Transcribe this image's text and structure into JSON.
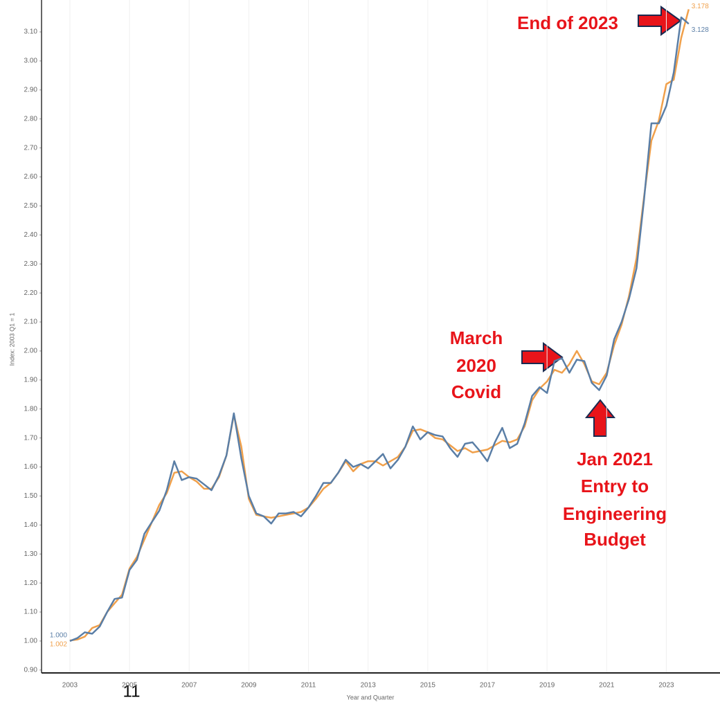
{
  "chart_data": {
    "type": "line",
    "x_label": "Year and Quarter",
    "y_label": "Index: 2003 Q1 = 1",
    "x": [
      2003,
      2003.25,
      2003.5,
      2003.75,
      2004,
      2004.25,
      2004.5,
      2004.75,
      2005,
      2005.25,
      2005.5,
      2005.75,
      2006,
      2006.25,
      2006.5,
      2006.75,
      2007,
      2007.25,
      2007.5,
      2007.75,
      2008,
      2008.25,
      2008.5,
      2008.75,
      2009,
      2009.25,
      2009.5,
      2009.75,
      2010,
      2010.25,
      2010.5,
      2010.75,
      2011,
      2011.25,
      2011.5,
      2011.75,
      2012,
      2012.25,
      2012.5,
      2012.75,
      2013,
      2013.25,
      2013.5,
      2013.75,
      2014,
      2014.25,
      2014.5,
      2014.75,
      2015,
      2015.25,
      2015.5,
      2015.75,
      2016,
      2016.25,
      2016.5,
      2016.75,
      2017,
      2017.25,
      2017.5,
      2017.75,
      2018,
      2018.25,
      2018.5,
      2018.75,
      2019,
      2019.25,
      2019.5,
      2019.75,
      2020,
      2020.25,
      2020.5,
      2020.75,
      2021,
      2021.25,
      2021.5,
      2021.75,
      2022,
      2022.25,
      2022.5,
      2022.75,
      2023,
      2023.25,
      2023.5,
      2023.75
    ],
    "series": [
      {
        "color": "#f0a04b",
        "values": [
          1.002,
          1.005,
          1.015,
          1.045,
          1.055,
          1.1,
          1.13,
          1.16,
          1.25,
          1.29,
          1.35,
          1.41,
          1.47,
          1.51,
          1.58,
          1.585,
          1.565,
          1.55,
          1.525,
          1.525,
          1.565,
          1.64,
          1.78,
          1.67,
          1.49,
          1.435,
          1.43,
          1.425,
          1.43,
          1.435,
          1.44,
          1.445,
          1.46,
          1.49,
          1.525,
          1.545,
          1.58,
          1.62,
          1.585,
          1.61,
          1.62,
          1.62,
          1.605,
          1.62,
          1.635,
          1.67,
          1.725,
          1.73,
          1.72,
          1.7,
          1.695,
          1.675,
          1.655,
          1.665,
          1.65,
          1.655,
          1.66,
          1.675,
          1.69,
          1.685,
          1.695,
          1.74,
          1.83,
          1.87,
          1.895,
          1.935,
          1.925,
          1.955,
          2.0,
          1.955,
          1.895,
          1.885,
          1.925,
          2.02,
          2.09,
          2.19,
          2.32,
          2.53,
          2.725,
          2.795,
          2.92,
          2.935,
          3.08,
          3.178
        ],
        "value_labels": [
          "1.002",
          null,
          null,
          null,
          null,
          null,
          null,
          null,
          null,
          null,
          null,
          null,
          null,
          null,
          null,
          null,
          null,
          null,
          null,
          null,
          null,
          null,
          null,
          null,
          null,
          null,
          null,
          null,
          null,
          null,
          null,
          null,
          null,
          null,
          null,
          null,
          null,
          null,
          null,
          null,
          null,
          null,
          null,
          null,
          null,
          null,
          null,
          null,
          null,
          null,
          null,
          null,
          null,
          null,
          null,
          null,
          null,
          null,
          null,
          null,
          null,
          null,
          null,
          null,
          null,
          null,
          null,
          null,
          null,
          null,
          null,
          null,
          null,
          null,
          null,
          null,
          null,
          null,
          null,
          null,
          null,
          null,
          null,
          "3.178"
        ]
      },
      {
        "color": "#5a7ea6",
        "values": [
          1.0,
          1.01,
          1.03,
          1.025,
          1.05,
          1.1,
          1.145,
          1.15,
          1.245,
          1.28,
          1.37,
          1.41,
          1.45,
          1.52,
          1.62,
          1.555,
          1.565,
          1.56,
          1.54,
          1.52,
          1.57,
          1.64,
          1.785,
          1.63,
          1.5,
          1.44,
          1.43,
          1.405,
          1.44,
          1.44,
          1.445,
          1.43,
          1.46,
          1.5,
          1.545,
          1.545,
          1.58,
          1.625,
          1.6,
          1.61,
          1.595,
          1.62,
          1.645,
          1.595,
          1.625,
          1.67,
          1.74,
          1.695,
          1.72,
          1.71,
          1.705,
          1.665,
          1.635,
          1.68,
          1.685,
          1.655,
          1.62,
          1.685,
          1.735,
          1.665,
          1.68,
          1.75,
          1.845,
          1.875,
          1.855,
          1.965,
          1.975,
          1.925,
          1.97,
          1.965,
          1.89,
          1.865,
          1.915,
          2.04,
          2.1,
          2.18,
          2.285,
          2.52,
          2.785,
          2.785,
          2.845,
          2.96,
          3.15,
          3.128
        ],
        "value_labels": [
          "1.000",
          null,
          null,
          null,
          null,
          null,
          null,
          null,
          null,
          null,
          null,
          null,
          null,
          null,
          null,
          null,
          null,
          null,
          null,
          null,
          null,
          null,
          null,
          null,
          null,
          null,
          null,
          null,
          null,
          null,
          null,
          null,
          null,
          null,
          null,
          null,
          null,
          null,
          null,
          null,
          null,
          null,
          null,
          null,
          null,
          null,
          null,
          null,
          null,
          null,
          null,
          null,
          null,
          null,
          null,
          null,
          null,
          null,
          null,
          null,
          null,
          null,
          null,
          null,
          null,
          null,
          null,
          null,
          null,
          null,
          null,
          null,
          null,
          null,
          null,
          null,
          null,
          null,
          null,
          null,
          null,
          null,
          null,
          "3.128"
        ]
      }
    ],
    "xlim": [
      2002.05,
      2024.8
    ],
    "xticks": [
      2003,
      2005,
      2007,
      2009,
      2011,
      2013,
      2015,
      2017,
      2019,
      2021,
      2023
    ],
    "ylim": [
      0.89,
      3.21
    ],
    "yticks": [
      {
        "value": 0.9,
        "label": "0.90"
      },
      {
        "value": 1.0,
        "label": "1.00"
      },
      {
        "value": 1.1,
        "label": "1.10"
      },
      {
        "value": 1.2,
        "label": "1.20"
      },
      {
        "value": 1.3,
        "label": "1.30"
      },
      {
        "value": 1.4,
        "label": "1.40"
      },
      {
        "value": 1.5,
        "label": "1.50"
      },
      {
        "value": 1.6,
        "label": "1.60"
      },
      {
        "value": 1.7,
        "label": "1.70"
      },
      {
        "value": 1.8,
        "label": "1.80"
      },
      {
        "value": 1.9,
        "label": "1.90"
      },
      {
        "value": 2.0,
        "label": "2.00"
      },
      {
        "value": 2.1,
        "label": "2.10"
      },
      {
        "value": 2.2,
        "label": "2.20"
      },
      {
        "value": 2.3,
        "label": "2.30"
      },
      {
        "value": 2.4,
        "label": "2.40"
      },
      {
        "value": 2.5,
        "label": "2.50"
      },
      {
        "value": 2.6,
        "label": "2.60"
      },
      {
        "value": 2.7,
        "label": "2.70"
      },
      {
        "value": 2.8,
        "label": "2.80"
      },
      {
        "value": 2.9,
        "label": "2.90"
      },
      {
        "value": 3.0,
        "label": "3.00"
      },
      {
        "value": 3.1,
        "label": "3.10"
      }
    ],
    "grid": "x",
    "annotations": [
      [
        "End of 2023"
      ],
      [
        "March",
        "2020",
        "Covid"
      ],
      [
        "Jan 2021",
        "Entry to",
        "Engineering",
        "Budget"
      ]
    ]
  },
  "page_number": "11"
}
